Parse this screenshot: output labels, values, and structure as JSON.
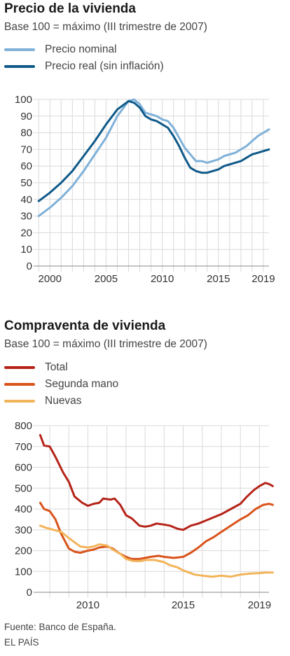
{
  "header1": {
    "title": "Precio de la vivienda",
    "subtitle": "Base 100 = máximo (III trimestre de 2007)"
  },
  "header2": {
    "title": "Compraventa de vivienda",
    "subtitle": "Base 100 = máximo (III trimestre de 2007)"
  },
  "footer": {
    "source": "Fuente: Banco de España.",
    "credit": "EL PAÍS"
  },
  "chart_data": [
    {
      "type": "line",
      "title": "Precio de la vivienda",
      "subtitle": "Base 100 = máximo (III trimestre de 2007)",
      "xlim": [
        1998.8,
        2019.5
      ],
      "ylim": [
        0,
        100
      ],
      "yticks": [
        0,
        10,
        20,
        30,
        40,
        50,
        60,
        70,
        80,
        90,
        100
      ],
      "xticks": [
        2000,
        2005,
        2010,
        2015,
        2019
      ],
      "x_tick_labels": [
        "2000",
        "2005",
        "2010",
        "2015",
        "2019"
      ],
      "grid": true,
      "legend_position": "top-left",
      "series": [
        {
          "name": "Precio nominal",
          "color": "#7fb1d9",
          "points": [
            [
              1999.0,
              30
            ],
            [
              2000.0,
              35
            ],
            [
              2001.0,
              41
            ],
            [
              2002.0,
              48
            ],
            [
              2003.0,
              57
            ],
            [
              2004.0,
              67
            ],
            [
              2005.0,
              77
            ],
            [
              2006.0,
              90
            ],
            [
              2007.0,
              99
            ],
            [
              2007.5,
              100
            ],
            [
              2008.0,
              97
            ],
            [
              2008.5,
              92
            ],
            [
              2009.5,
              90
            ],
            [
              2010.0,
              88
            ],
            [
              2010.5,
              87
            ],
            [
              2011.0,
              83
            ],
            [
              2011.5,
              77
            ],
            [
              2012.0,
              71
            ],
            [
              2012.5,
              67
            ],
            [
              2013.0,
              63
            ],
            [
              2013.5,
              63
            ],
            [
              2014.0,
              62
            ],
            [
              2014.5,
              63
            ],
            [
              2015.0,
              64
            ],
            [
              2015.5,
              66
            ],
            [
              2016.0,
              67
            ],
            [
              2016.5,
              68
            ],
            [
              2017.0,
              70
            ],
            [
              2017.5,
              72
            ],
            [
              2018.0,
              75
            ],
            [
              2018.5,
              78
            ],
            [
              2019.0,
              80
            ],
            [
              2019.5,
              82
            ]
          ]
        },
        {
          "name": "Precio real (sin inflación)",
          "color": "#0f5a8a",
          "points": [
            [
              1999.0,
              39
            ],
            [
              2000.0,
              44
            ],
            [
              2001.0,
              50
            ],
            [
              2002.0,
              57
            ],
            [
              2003.0,
              66
            ],
            [
              2004.0,
              75
            ],
            [
              2005.0,
              85
            ],
            [
              2006.0,
              94
            ],
            [
              2007.0,
              99
            ],
            [
              2007.5,
              98
            ],
            [
              2008.0,
              95
            ],
            [
              2008.5,
              90
            ],
            [
              2009.0,
              88
            ],
            [
              2009.5,
              87
            ],
            [
              2010.0,
              85
            ],
            [
              2010.5,
              83
            ],
            [
              2011.0,
              78
            ],
            [
              2011.5,
              72
            ],
            [
              2012.0,
              65
            ],
            [
              2012.5,
              59
            ],
            [
              2013.0,
              57
            ],
            [
              2013.5,
              56
            ],
            [
              2014.0,
              56
            ],
            [
              2014.5,
              57
            ],
            [
              2015.0,
              58
            ],
            [
              2015.5,
              60
            ],
            [
              2016.0,
              61
            ],
            [
              2016.5,
              62
            ],
            [
              2017.0,
              63
            ],
            [
              2017.5,
              65
            ],
            [
              2018.0,
              67
            ],
            [
              2018.5,
              68
            ],
            [
              2019.0,
              69
            ],
            [
              2019.5,
              70
            ]
          ]
        }
      ]
    },
    {
      "type": "line",
      "title": "Compraventa de vivienda",
      "subtitle": "Base 100 = máximo (III trimestre de 2007)",
      "xlim": [
        2007.3,
        2019.5
      ],
      "ylim": [
        0,
        800
      ],
      "yticks": [
        0,
        100,
        200,
        300,
        400,
        500,
        600,
        700,
        800
      ],
      "xticks": [
        2010,
        2015,
        2019
      ],
      "x_tick_labels": [
        "2010",
        "2015",
        "2019"
      ],
      "grid": true,
      "legend_position": "top-left",
      "series": [
        {
          "name": "Total",
          "color": "#b52318",
          "points": [
            [
              2007.5,
              755
            ],
            [
              2007.7,
              705
            ],
            [
              2008.0,
              700
            ],
            [
              2008.3,
              650
            ],
            [
              2008.7,
              575
            ],
            [
              2009.0,
              530
            ],
            [
              2009.3,
              460
            ],
            [
              2009.7,
              430
            ],
            [
              2010.0,
              415
            ],
            [
              2010.3,
              425
            ],
            [
              2010.6,
              430
            ],
            [
              2010.8,
              450
            ],
            [
              2011.2,
              445
            ],
            [
              2011.4,
              450
            ],
            [
              2011.7,
              420
            ],
            [
              2012.0,
              370
            ],
            [
              2012.3,
              355
            ],
            [
              2012.7,
              320
            ],
            [
              2013.0,
              315
            ],
            [
              2013.3,
              320
            ],
            [
              2013.6,
              330
            ],
            [
              2014.0,
              325
            ],
            [
              2014.3,
              320
            ],
            [
              2014.7,
              305
            ],
            [
              2015.0,
              300
            ],
            [
              2015.4,
              320
            ],
            [
              2015.8,
              330
            ],
            [
              2016.2,
              345
            ],
            [
              2016.6,
              360
            ],
            [
              2017.0,
              375
            ],
            [
              2017.5,
              400
            ],
            [
              2018.0,
              425
            ],
            [
              2018.3,
              455
            ],
            [
              2018.7,
              490
            ],
            [
              2019.0,
              510
            ],
            [
              2019.3,
              525
            ],
            [
              2019.5,
              520
            ],
            [
              2019.7,
              510
            ]
          ]
        },
        {
          "name": "Segunda mano",
          "color": "#d9531a",
          "points": [
            [
              2007.5,
              430
            ],
            [
              2007.7,
              400
            ],
            [
              2008.0,
              390
            ],
            [
              2008.3,
              350
            ],
            [
              2008.6,
              280
            ],
            [
              2009.0,
              210
            ],
            [
              2009.3,
              195
            ],
            [
              2009.6,
              190
            ],
            [
              2010.0,
              200
            ],
            [
              2010.3,
              205
            ],
            [
              2010.6,
              215
            ],
            [
              2011.0,
              220
            ],
            [
              2011.3,
              210
            ],
            [
              2011.6,
              190
            ],
            [
              2012.0,
              170
            ],
            [
              2012.3,
              160
            ],
            [
              2012.7,
              160
            ],
            [
              2013.0,
              165
            ],
            [
              2013.3,
              170
            ],
            [
              2013.7,
              175
            ],
            [
              2014.0,
              170
            ],
            [
              2014.5,
              165
            ],
            [
              2015.0,
              170
            ],
            [
              2015.4,
              190
            ],
            [
              2015.8,
              215
            ],
            [
              2016.2,
              245
            ],
            [
              2016.6,
              265
            ],
            [
              2017.0,
              290
            ],
            [
              2017.5,
              320
            ],
            [
              2018.0,
              350
            ],
            [
              2018.4,
              370
            ],
            [
              2018.8,
              400
            ],
            [
              2019.2,
              420
            ],
            [
              2019.5,
              425
            ],
            [
              2019.7,
              420
            ]
          ]
        },
        {
          "name": "Nuevas",
          "color": "#f2b45a",
          "points": [
            [
              2007.5,
              320
            ],
            [
              2007.8,
              310
            ],
            [
              2008.2,
              300
            ],
            [
              2008.6,
              290
            ],
            [
              2009.0,
              260
            ],
            [
              2009.3,
              240
            ],
            [
              2009.6,
              220
            ],
            [
              2010.0,
              215
            ],
            [
              2010.3,
              220
            ],
            [
              2010.6,
              230
            ],
            [
              2011.0,
              225
            ],
            [
              2011.3,
              205
            ],
            [
              2011.7,
              185
            ],
            [
              2012.0,
              160
            ],
            [
              2012.4,
              150
            ],
            [
              2012.8,
              150
            ],
            [
              2013.0,
              155
            ],
            [
              2013.5,
              155
            ],
            [
              2014.0,
              145
            ],
            [
              2014.3,
              130
            ],
            [
              2014.7,
              120
            ],
            [
              2015.0,
              105
            ],
            [
              2015.3,
              95
            ],
            [
              2015.6,
              85
            ],
            [
              2016.0,
              80
            ],
            [
              2016.5,
              75
            ],
            [
              2017.0,
              80
            ],
            [
              2017.5,
              75
            ],
            [
              2018.0,
              85
            ],
            [
              2018.5,
              90
            ],
            [
              2019.0,
              92
            ],
            [
              2019.3,
              95
            ],
            [
              2019.7,
              95
            ]
          ]
        }
      ]
    }
  ]
}
